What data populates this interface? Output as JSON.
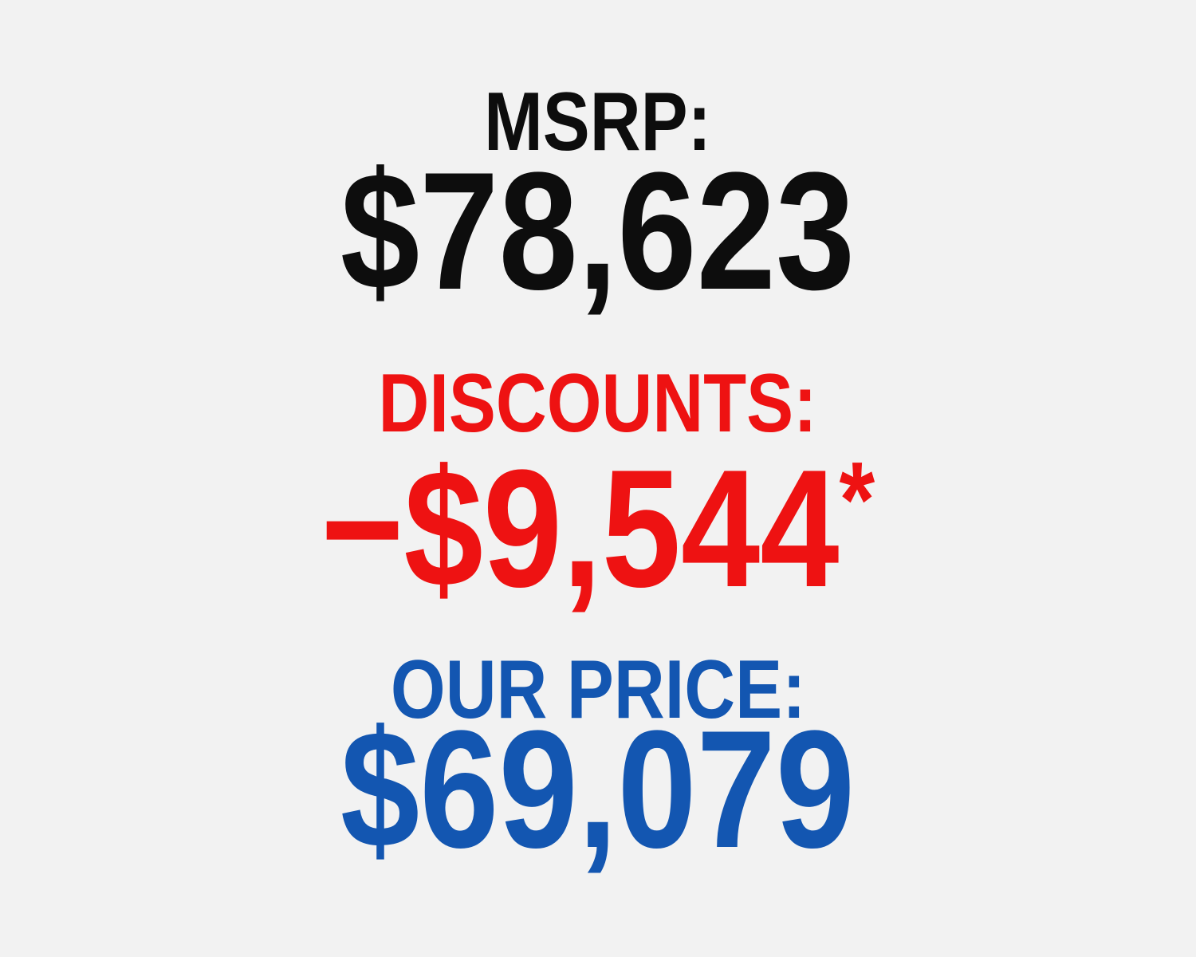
{
  "colors": {
    "background": "#f2f2f2",
    "msrp": "#0d0d0d",
    "discount": "#ee1212",
    "price": "#1356b1"
  },
  "pricing": {
    "msrp": {
      "label": "MSRP:",
      "value": "$78,623"
    },
    "discounts": {
      "label": "DISCOUNTS:",
      "value": "−$9,544",
      "asterisk": "*"
    },
    "our_price": {
      "label": "OUR PRICE:",
      "value": "$69,079"
    }
  }
}
